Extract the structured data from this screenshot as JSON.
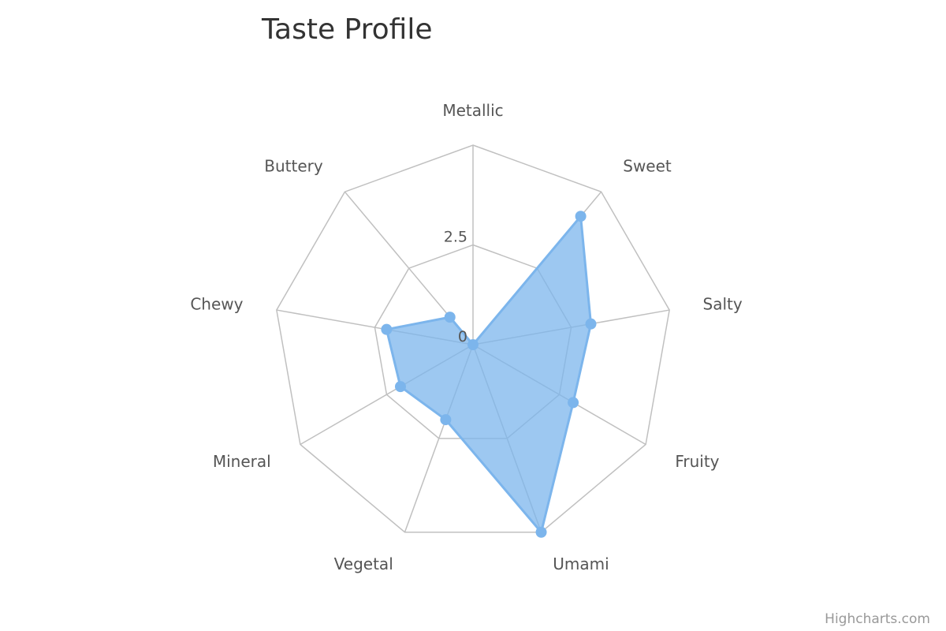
{
  "chart_data": {
    "type": "radar",
    "title": "Taste Profile",
    "categories": [
      "Metallic",
      "Sweet",
      "Salty",
      "Fruity",
      "Umami",
      "Vegetal",
      "Mineral",
      "Chewy",
      "Buttery"
    ],
    "series": [
      {
        "values": [
          0,
          4.2,
          3,
          2.9,
          5,
          2,
          2.1,
          2.2,
          0.9
        ]
      }
    ],
    "yticks": [
      "0",
      "2.5"
    ],
    "ylim": [
      0,
      5
    ],
    "series_color": "#7cb5ec",
    "grid_color": "#c0c0c0",
    "grid": true,
    "legend": false
  },
  "credits": "Highcharts.com"
}
